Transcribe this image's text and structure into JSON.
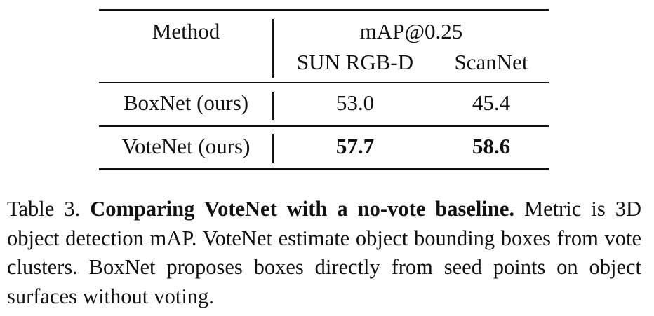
{
  "table": {
    "header": {
      "method": "Method",
      "metric_group": "mAP@0.25",
      "columns": [
        "SUN RGB-D",
        "ScanNet"
      ]
    },
    "rows": [
      {
        "method": "BoxNet (ours)",
        "values": [
          "53.0",
          "45.4"
        ],
        "bold": false
      },
      {
        "method": "VoteNet (ours)",
        "values": [
          "57.7",
          "58.6"
        ],
        "bold": true
      }
    ]
  },
  "caption": {
    "label": "Table 3.",
    "title": "Comparing VoteNet with a no-vote baseline.",
    "text": "Metric is 3D object detection mAP. VoteNet estimate object bounding boxes from vote clusters.  BoxNet  proposes boxes directly from seed points on object surfaces without voting."
  }
}
